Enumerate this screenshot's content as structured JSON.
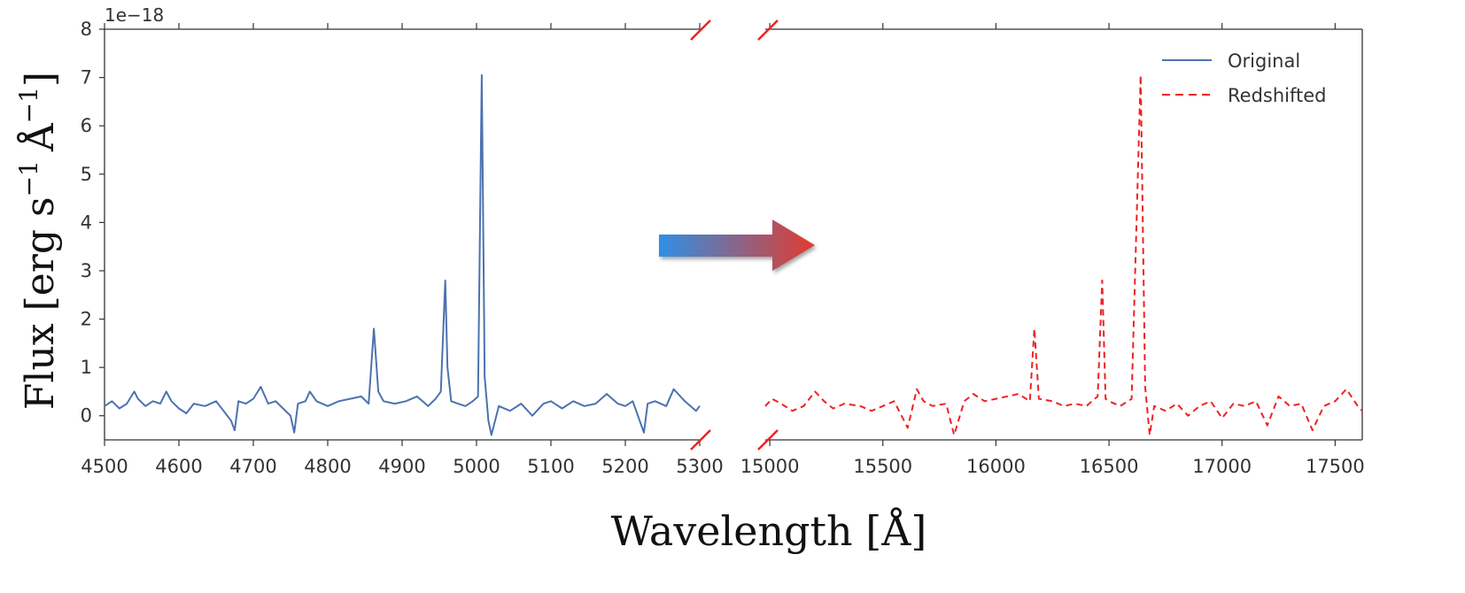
{
  "chart_data": {
    "type": "line",
    "ylabel": "Flux [erg s^-1 Å^-1]",
    "ylabel_parts": {
      "main": "Flux [erg s",
      "exp1": "−1",
      "mid": "Å",
      "exp2": "−1",
      "end": "]"
    },
    "xlabel": "Wavelength [Å]",
    "y_offset_text": "1e−18",
    "ylim": [
      -0.5,
      8
    ],
    "yticks": [
      "0",
      "1",
      "2",
      "3",
      "4",
      "5",
      "6",
      "7",
      "8"
    ],
    "broken_x_axis": true,
    "grid": false,
    "legend_placement": "top-right",
    "colors": {
      "original": "#4c72b0",
      "redshifted": "#ee2222",
      "break_marks": "#ee2222"
    },
    "panels": [
      {
        "xlim": [
          4500,
          5300
        ],
        "xticks": [
          "4500",
          "4600",
          "4700",
          "4800",
          "4900",
          "5000",
          "5100",
          "5200",
          "5300"
        ],
        "series": {
          "name": "Original",
          "style": "solid",
          "x": [
            4500,
            4510,
            4520,
            4530,
            4540,
            4545,
            4555,
            4565,
            4575,
            4583,
            4590,
            4600,
            4610,
            4620,
            4635,
            4650,
            4660,
            4670,
            4675,
            4680,
            4690,
            4700,
            4710,
            4720,
            4730,
            4740,
            4750,
            4755,
            4760,
            4770,
            4776,
            4785,
            4800,
            4815,
            4830,
            4845,
            4855,
            4862,
            4868,
            4875,
            4890,
            4905,
            4920,
            4935,
            4945,
            4952,
            4958,
            4961,
            4966,
            4975,
            4985,
            4995,
            5002,
            5007,
            5011,
            5016,
            5020,
            5030,
            5045,
            5060,
            5075,
            5090,
            5100,
            5115,
            5130,
            5145,
            5160,
            5175,
            5190,
            5200,
            5210,
            5225,
            5230,
            5240,
            5255,
            5265,
            5280,
            5295,
            5300
          ],
          "y": [
            0.2,
            0.3,
            0.15,
            0.25,
            0.5,
            0.35,
            0.2,
            0.3,
            0.25,
            0.5,
            0.3,
            0.15,
            0.05,
            0.25,
            0.2,
            0.3,
            0.1,
            -0.1,
            -0.3,
            0.3,
            0.25,
            0.35,
            0.6,
            0.25,
            0.3,
            0.15,
            0.0,
            -0.35,
            0.25,
            0.3,
            0.5,
            0.3,
            0.2,
            0.3,
            0.35,
            0.4,
            0.25,
            1.8,
            0.5,
            0.3,
            0.25,
            0.3,
            0.4,
            0.2,
            0.35,
            0.5,
            2.8,
            1.0,
            0.3,
            0.25,
            0.2,
            0.3,
            0.4,
            7.05,
            0.8,
            -0.1,
            -0.4,
            0.2,
            0.1,
            0.25,
            0.0,
            0.25,
            0.3,
            0.15,
            0.3,
            0.2,
            0.25,
            0.45,
            0.25,
            0.2,
            0.3,
            -0.35,
            0.25,
            0.3,
            0.2,
            0.55,
            0.3,
            0.1,
            0.2
          ]
        }
      },
      {
        "xlim": [
          14980,
          17620
        ],
        "xticks": [
          "15000",
          "15500",
          "16000",
          "16500",
          "17000",
          "17500"
        ],
        "series": {
          "name": "Redshifted",
          "style": "dashed",
          "x": [
            14980,
            15010,
            15050,
            15100,
            15150,
            15200,
            15240,
            15280,
            15330,
            15400,
            15450,
            15500,
            15550,
            15610,
            15650,
            15680,
            15720,
            15780,
            15815,
            15860,
            15900,
            15950,
            16000,
            16050,
            16100,
            16150,
            16170,
            16190,
            16250,
            16300,
            16350,
            16400,
            16450,
            16470,
            16485,
            16500,
            16550,
            16600,
            16640,
            16660,
            16680,
            16700,
            16750,
            16800,
            16850,
            16900,
            16950,
            17000,
            17050,
            17100,
            17150,
            17200,
            17250,
            17300,
            17350,
            17400,
            17450,
            17500,
            17550,
            17600,
            17620
          ],
          "y": [
            0.2,
            0.35,
            0.25,
            0.1,
            0.2,
            0.5,
            0.3,
            0.15,
            0.25,
            0.2,
            0.1,
            0.2,
            0.3,
            -0.25,
            0.55,
            0.3,
            0.2,
            0.25,
            -0.4,
            0.3,
            0.45,
            0.3,
            0.35,
            0.4,
            0.45,
            0.3,
            1.8,
            0.35,
            0.3,
            0.2,
            0.25,
            0.2,
            0.4,
            2.8,
            0.35,
            0.3,
            0.2,
            0.35,
            7.05,
            0.6,
            -0.4,
            0.2,
            0.1,
            0.25,
            0.0,
            0.2,
            0.3,
            -0.05,
            0.25,
            0.2,
            0.3,
            -0.2,
            0.4,
            0.2,
            0.25,
            -0.3,
            0.2,
            0.3,
            0.55,
            0.2,
            0.1
          ]
        }
      }
    ]
  }
}
